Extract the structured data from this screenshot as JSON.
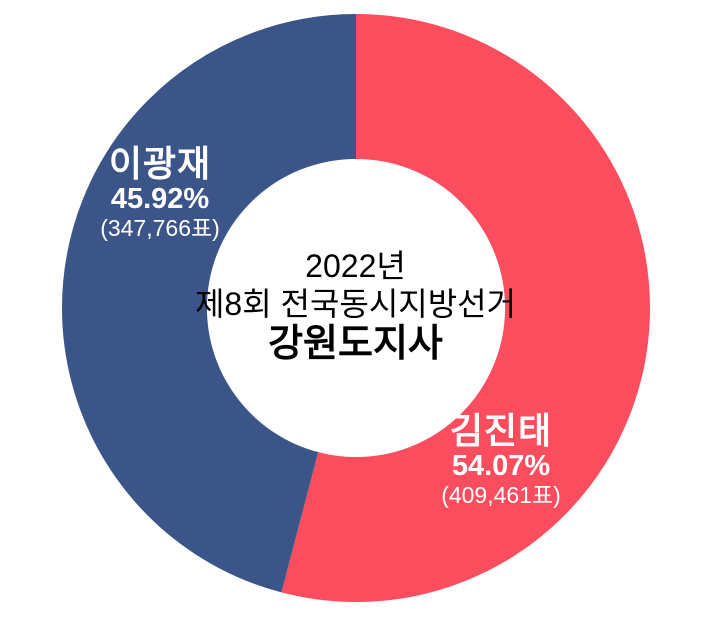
{
  "chart_data": {
    "type": "pie",
    "variant": "donut",
    "title_lines": [
      "2022년",
      "제8회 전국동시지방선거",
      "강원도지사"
    ],
    "start_angle_deg": 0,
    "direction": "clockwise",
    "inner_radius_ratio": 0.507,
    "legend_position": "labels-on-slices",
    "background_color": "#ffffff",
    "label_text_color": "#ffffff",
    "center_text_color": "#000000",
    "series": [
      {
        "name": "김진태",
        "percent": 54.07,
        "percent_label": "54.07%",
        "votes": 409461,
        "votes_label": "(409,461표)",
        "color": "#fc4d5f"
      },
      {
        "name": "이광재",
        "percent": 45.92,
        "percent_label": "45.92%",
        "votes": 347766,
        "votes_label": "(347,766표)",
        "color": "#3c5588"
      }
    ]
  }
}
